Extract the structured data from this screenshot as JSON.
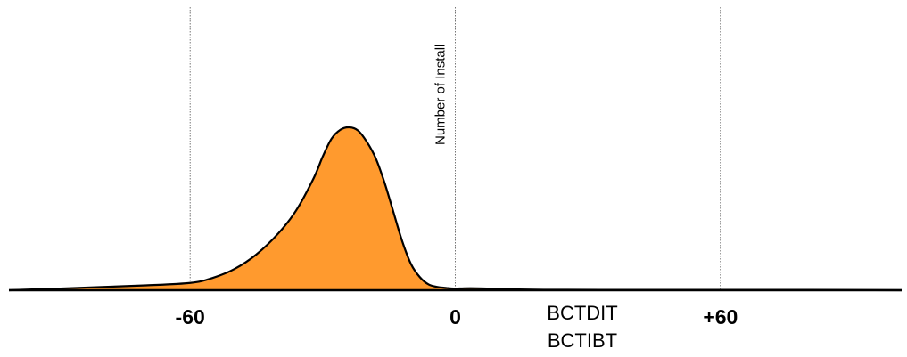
{
  "chart_data": {
    "type": "area",
    "title": "",
    "xlabel_line1": "BCTDIT",
    "xlabel_line2": "BCTIBT",
    "ylabel": "Number of Install",
    "xlim": [
      -101,
      101
    ],
    "ylim": [
      0,
      1.0
    ],
    "xticks": [
      {
        "value": -60,
        "label": "-60"
      },
      {
        "value": 0,
        "label": "0"
      },
      {
        "value": 60,
        "label": "+60"
      }
    ],
    "grid_x": true,
    "grid_style": "dotted",
    "fill_color": "#FF9A2E",
    "line_color": "#000000",
    "series": [
      {
        "x": [
          -101,
          -90,
          -80,
          -70,
          -60,
          -55,
          -50,
          -45,
          -40,
          -36,
          -32,
          -30,
          -28,
          -26,
          -24,
          -22,
          -20,
          -18,
          -16,
          -14,
          -12,
          -10,
          -8,
          -6,
          -4,
          -2,
          0,
          2,
          5,
          8,
          12,
          20,
          40,
          60,
          80,
          101
        ],
        "values": [
          0.0,
          0.01,
          0.02,
          0.03,
          0.045,
          0.075,
          0.13,
          0.22,
          0.35,
          0.49,
          0.69,
          0.82,
          0.93,
          0.985,
          1.0,
          0.98,
          0.91,
          0.81,
          0.66,
          0.48,
          0.3,
          0.16,
          0.08,
          0.035,
          0.02,
          0.014,
          0.01,
          0.012,
          0.012,
          0.01,
          0.006,
          0.003,
          0.002,
          0.002,
          0.002,
          0.0
        ]
      }
    ]
  }
}
